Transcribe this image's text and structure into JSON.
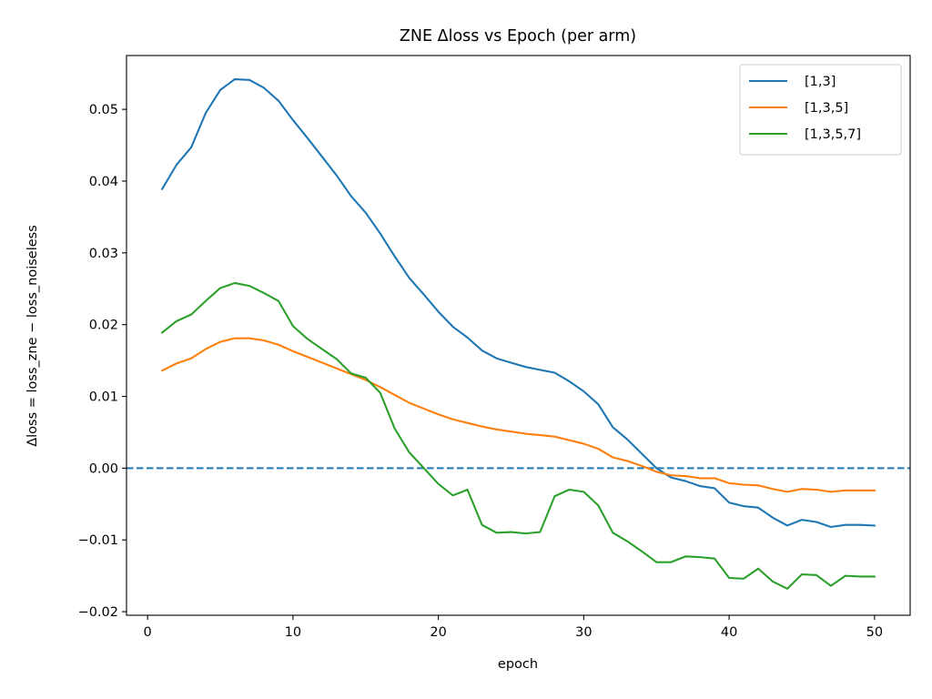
{
  "chart_data": {
    "type": "line",
    "title": "ZNE Δloss vs Epoch (per arm)",
    "xlabel": "epoch",
    "ylabel": "Δloss = loss_zne − loss_noiseless",
    "xlim": [
      -1.45,
      52.45
    ],
    "ylim": [
      -0.0205,
      0.0575
    ],
    "x_ticks": [
      0,
      10,
      20,
      30,
      40,
      50
    ],
    "x_tick_labels": [
      "0",
      "10",
      "20",
      "30",
      "40",
      "50"
    ],
    "y_ticks": [
      -0.02,
      -0.01,
      0.0,
      0.01,
      0.02,
      0.03,
      0.04,
      0.05
    ],
    "y_tick_labels": [
      "−0.02",
      "−0.01",
      "0.00",
      "0.01",
      "0.02",
      "0.03",
      "0.04",
      "0.05"
    ],
    "grid": false,
    "legend_position": "top-right",
    "reference_line": {
      "y": 0.0,
      "style": "dashed",
      "color": "#1f77b4"
    },
    "x": [
      1,
      2,
      3,
      4,
      5,
      6,
      7,
      8,
      9,
      10,
      11,
      12,
      13,
      14,
      15,
      16,
      17,
      18,
      19,
      20,
      21,
      22,
      23,
      24,
      25,
      26,
      27,
      28,
      29,
      30,
      31,
      32,
      33,
      34,
      35,
      36,
      37,
      38,
      39,
      40,
      41,
      42,
      43,
      44,
      45,
      46,
      47,
      48,
      49,
      50
    ],
    "series": [
      {
        "name": "[1,3]",
        "color": "#1f77b4",
        "values": [
          0.0389,
          0.0423,
          0.0447,
          0.0495,
          0.0527,
          0.0542,
          0.0541,
          0.053,
          0.0512,
          0.0485,
          0.046,
          0.0434,
          0.0408,
          0.0379,
          0.0356,
          0.0327,
          0.0295,
          0.0265,
          0.0242,
          0.0218,
          0.0197,
          0.0182,
          0.0164,
          0.0153,
          0.0147,
          0.0141,
          0.0137,
          0.0133,
          0.0121,
          0.0107,
          0.0089,
          0.0057,
          0.004,
          0.002,
          0.0,
          -0.0013,
          -0.0018,
          -0.0025,
          -0.0028,
          -0.0048,
          -0.0053,
          -0.0055,
          -0.0069,
          -0.008,
          -0.0072,
          -0.0075,
          -0.0082,
          -0.0079,
          -0.0079,
          -0.008
        ]
      },
      {
        "name": "[1,3,5]",
        "color": "#ff7f0e",
        "values": [
          0.0136,
          0.0146,
          0.0153,
          0.0166,
          0.0176,
          0.0181,
          0.0181,
          0.0178,
          0.0172,
          0.0163,
          0.0155,
          0.0147,
          0.0139,
          0.0131,
          0.0123,
          0.0113,
          0.0102,
          0.0091,
          0.0083,
          0.0075,
          0.0068,
          0.0063,
          0.0058,
          0.0054,
          0.0051,
          0.0048,
          0.0046,
          0.0044,
          0.0039,
          0.0034,
          0.0027,
          0.0015,
          0.001,
          0.0003,
          -0.0005,
          -0.001,
          -0.0011,
          -0.0014,
          -0.0014,
          -0.0021,
          -0.0023,
          -0.0024,
          -0.0029,
          -0.0033,
          -0.0029,
          -0.003,
          -0.0033,
          -0.0031,
          -0.0031,
          -0.0031
        ]
      },
      {
        "name": "[1,3,5,7]",
        "color": "#2ca02c",
        "values": [
          0.0189,
          0.0205,
          0.0214,
          0.0233,
          0.0251,
          0.0258,
          0.0254,
          0.0244,
          0.0233,
          0.0198,
          0.018,
          0.0166,
          0.0152,
          0.0132,
          0.0126,
          0.0105,
          0.0055,
          0.0022,
          0.0,
          -0.0022,
          -0.0038,
          -0.003,
          -0.0079,
          -0.009,
          -0.0089,
          -0.0091,
          -0.0089,
          -0.0039,
          -0.003,
          -0.0033,
          -0.0052,
          -0.009,
          -0.0102,
          -0.0116,
          -0.0131,
          -0.0131,
          -0.0123,
          -0.0124,
          -0.0126,
          -0.0153,
          -0.0154,
          -0.014,
          -0.0158,
          -0.0168,
          -0.0148,
          -0.0149,
          -0.0164,
          -0.015,
          -0.0151,
          -0.0151
        ]
      }
    ]
  }
}
